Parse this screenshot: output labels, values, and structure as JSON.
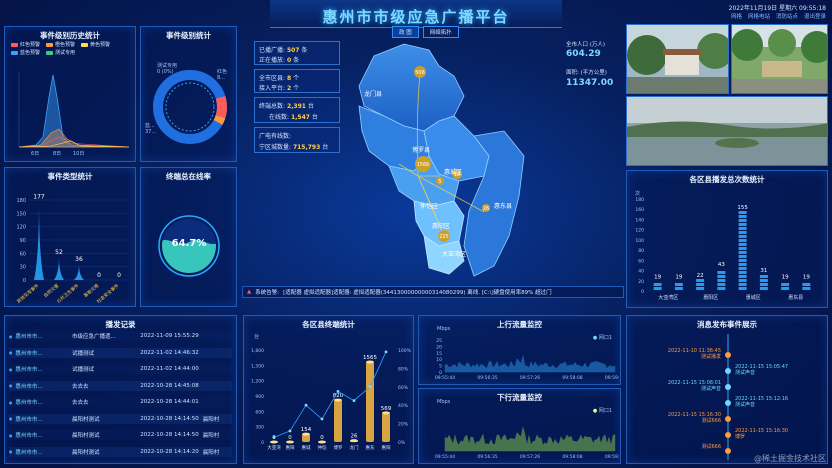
{
  "header": {
    "title": "惠州市市级应急广播平台",
    "date": "2022年11月19日",
    "weekday": "星期六",
    "time": "09:55:18",
    "nav": [
      "网格",
      "网格电站",
      "消防站点",
      "退出登录"
    ]
  },
  "map_tabs": [
    "政 图",
    "网络拓扑"
  ],
  "stats_left": {
    "online_label": "已播广播:",
    "online": "507",
    "online_unit": "条",
    "playing_label": "正在播放:",
    "playing": "0",
    "playing_unit": "条",
    "area_label": "全市区县:",
    "area": "8",
    "area_unit": "个",
    "platform_label": "接入平台:",
    "platform": "2",
    "platform_unit": "个",
    "terminal_label": "终端总数:",
    "terminal": "2,391",
    "terminal_unit": "台",
    "online_term_label": "在线数:",
    "online_term": "1,547",
    "online_term_unit": "台",
    "wired_label": "广电有线数:",
    "cover_label": "宁区城数量:",
    "cover": "715,793",
    "cover_unit": "台"
  },
  "stats_right": {
    "pop_label": "全市人口 (万人)",
    "pop": "604.29",
    "area_label": "面积: (平方公里)",
    "area": "11347.00"
  },
  "map_labels": {
    "p1": "惠阳区",
    "p2": "博罗县",
    "p3": "惠城区",
    "p4": "惠东县",
    "p5": "惠阳区",
    "p6": "大亚湾区",
    "p7": "龙门县",
    "p8": "仲恺区",
    "v1": "506",
    "v2": "1566",
    "v3": "18",
    "v4": "5",
    "v5": "26",
    "v6": "225"
  },
  "alert": {
    "label": "系统告警:",
    "text": "[适配器 虚拟适配器]适配器: 虚拟适配器(34413000000000314080299) 离线. [C:\\]硬盘使用率89% 超过门"
  },
  "panels": {
    "history": "事件级别历史统计",
    "level": "事件级别统计",
    "type": "事件类型统计",
    "online_rate": "终端总在线率",
    "records": "播发记录",
    "district": "各区县终端统计",
    "uplink": "上行流量监控",
    "downlink": "下行流量监控",
    "broadcast_count": "各区县播发总次数统计",
    "message": "消息发布事件展示"
  },
  "history_legend": [
    {
      "name": "红色预警",
      "color": "#ff5b5b"
    },
    {
      "name": "橙色预警",
      "color": "#ff9a3c"
    },
    {
      "name": "黄色预警",
      "color": "#ffe04a"
    },
    {
      "name": "蓝色预警",
      "color": "#3aa0ff"
    },
    {
      "name": "测试专用",
      "color": "#35d07f"
    }
  ],
  "history_axis": [
    "6日",
    "8日",
    "10日"
  ],
  "level_donut": {
    "left_label": "测试专用",
    "left_value": "0 (0%)",
    "right_label": "红色",
    "right_value": "8...",
    "bottom_label": "蓝...",
    "bottom_value": "37..."
  },
  "chart_data": [
    {
      "type": "bar",
      "title": "事件类型统计",
      "categories": [
        "其他突发事件",
        "自然灾害",
        "公共卫生事件",
        "事故灾难",
        "社会安全事件"
      ],
      "values": [
        177,
        52,
        36,
        0,
        0
      ],
      "ylim": [
        0,
        180
      ],
      "yticks": [
        "180",
        "150",
        "120",
        "90",
        "60",
        "30",
        "0"
      ]
    },
    {
      "type": "bar",
      "title": "各区县播发总次数统计",
      "categories": [
        "大亚湾区",
        "",
        "惠阳区",
        "",
        "惠城区",
        "",
        "惠东县",
        ""
      ],
      "values": [
        19,
        19,
        22,
        43,
        155,
        31,
        19,
        19
      ],
      "ylabel": "次",
      "ylim": [
        0,
        180
      ],
      "yticks": [
        "180",
        "160",
        "140",
        "120",
        "100",
        "80",
        "60",
        "40",
        "20",
        "0"
      ]
    },
    {
      "type": "bar",
      "title": "各区县终端统计",
      "categories": [
        "大亚湾",
        "惠阳",
        "惠城",
        "仲恺",
        "博罗",
        "龙门",
        "惠东",
        "惠阳"
      ],
      "values": [
        0,
        0,
        154,
        0,
        820,
        26,
        1565,
        569
      ],
      "line_values": [
        5,
        12,
        40,
        25,
        55,
        45,
        60,
        98
      ],
      "ylabel": "台",
      "ylim": [
        0,
        1800
      ],
      "yticks": [
        "1,800",
        "1,500",
        "1,200",
        "900",
        "600",
        "300",
        "0"
      ],
      "y2ticks": [
        "100%",
        "80%",
        "60%",
        "40%",
        "20%",
        "0%"
      ]
    }
  ],
  "online_rate": "64.7%",
  "records": [
    {
      "name": "惠州市市...",
      "title": "市级应急广播遗...",
      "time": "2022-11-09 15:55:29",
      "extra": ""
    },
    {
      "name": "惠州市市...",
      "title": "试播测试",
      "time": "2022-11-02 14:46:32",
      "extra": ""
    },
    {
      "name": "惠州市市...",
      "title": "试播测试",
      "time": "2022-11-02 14:44:00",
      "extra": ""
    },
    {
      "name": "惠州市市...",
      "title": "去去去",
      "time": "2022-10-28 14:45:08",
      "extra": ""
    },
    {
      "name": "惠州市市...",
      "title": "去去去",
      "time": "2022-10-28 14:44:01",
      "extra": ""
    },
    {
      "name": "惠州市市...",
      "title": "晨阳村测试",
      "time": "2022-10-28 14:14:50",
      "extra": "晨阳村"
    },
    {
      "name": "惠州市市...",
      "title": "晨阳村测试",
      "time": "2022-10-28 14:14:50",
      "extra": "晨阳村"
    },
    {
      "name": "惠州市市...",
      "title": "晨阳村测试",
      "time": "2022-10-28 14:14:20",
      "extra": "晨阳村"
    }
  ],
  "uplink": {
    "unit": "Mbps",
    "legend": "网口1",
    "yticks": [
      "25",
      "20",
      "15",
      "10",
      "5",
      "0"
    ],
    "xticks": [
      "09:55:44",
      "09:56:35",
      "09:57:26",
      "09:58:08",
      "09:59:59"
    ]
  },
  "downlink": {
    "unit": "Mbps",
    "legend": "网口1",
    "xticks": [
      "09:55:44",
      "09:56:35",
      "09:57:26",
      "09:58:08",
      "09:59:59"
    ]
  },
  "messages": [
    {
      "time": "2022-11-10 11:36:45",
      "name": "测试播发",
      "color": "#ff9a3c"
    },
    {
      "time": "2022-11-15 15:05:47",
      "name": "测试声音",
      "color": "#6fd6ff"
    },
    {
      "time": "2022-11-15 15:08:01",
      "name": "测试声音",
      "color": "#6fd6ff"
    },
    {
      "time": "2022-11-15 15:12:16",
      "name": "测试声音",
      "color": "#6fd6ff"
    },
    {
      "time": "2022-11-15 15:16:30",
      "name": "测试666",
      "color": "#ff9a3c"
    },
    {
      "time": "2022-11-15 15:16:30",
      "name": "博罗",
      "color": "#ff9a3c"
    },
    {
      "time": "",
      "name": "测试666",
      "color": "#ff9a3c"
    }
  ],
  "watermark": "@稀土掘金技术社区",
  "colors": {
    "accent": "#2aa8ff",
    "gold": "#ffd24a",
    "teal": "#3fe0c8"
  }
}
